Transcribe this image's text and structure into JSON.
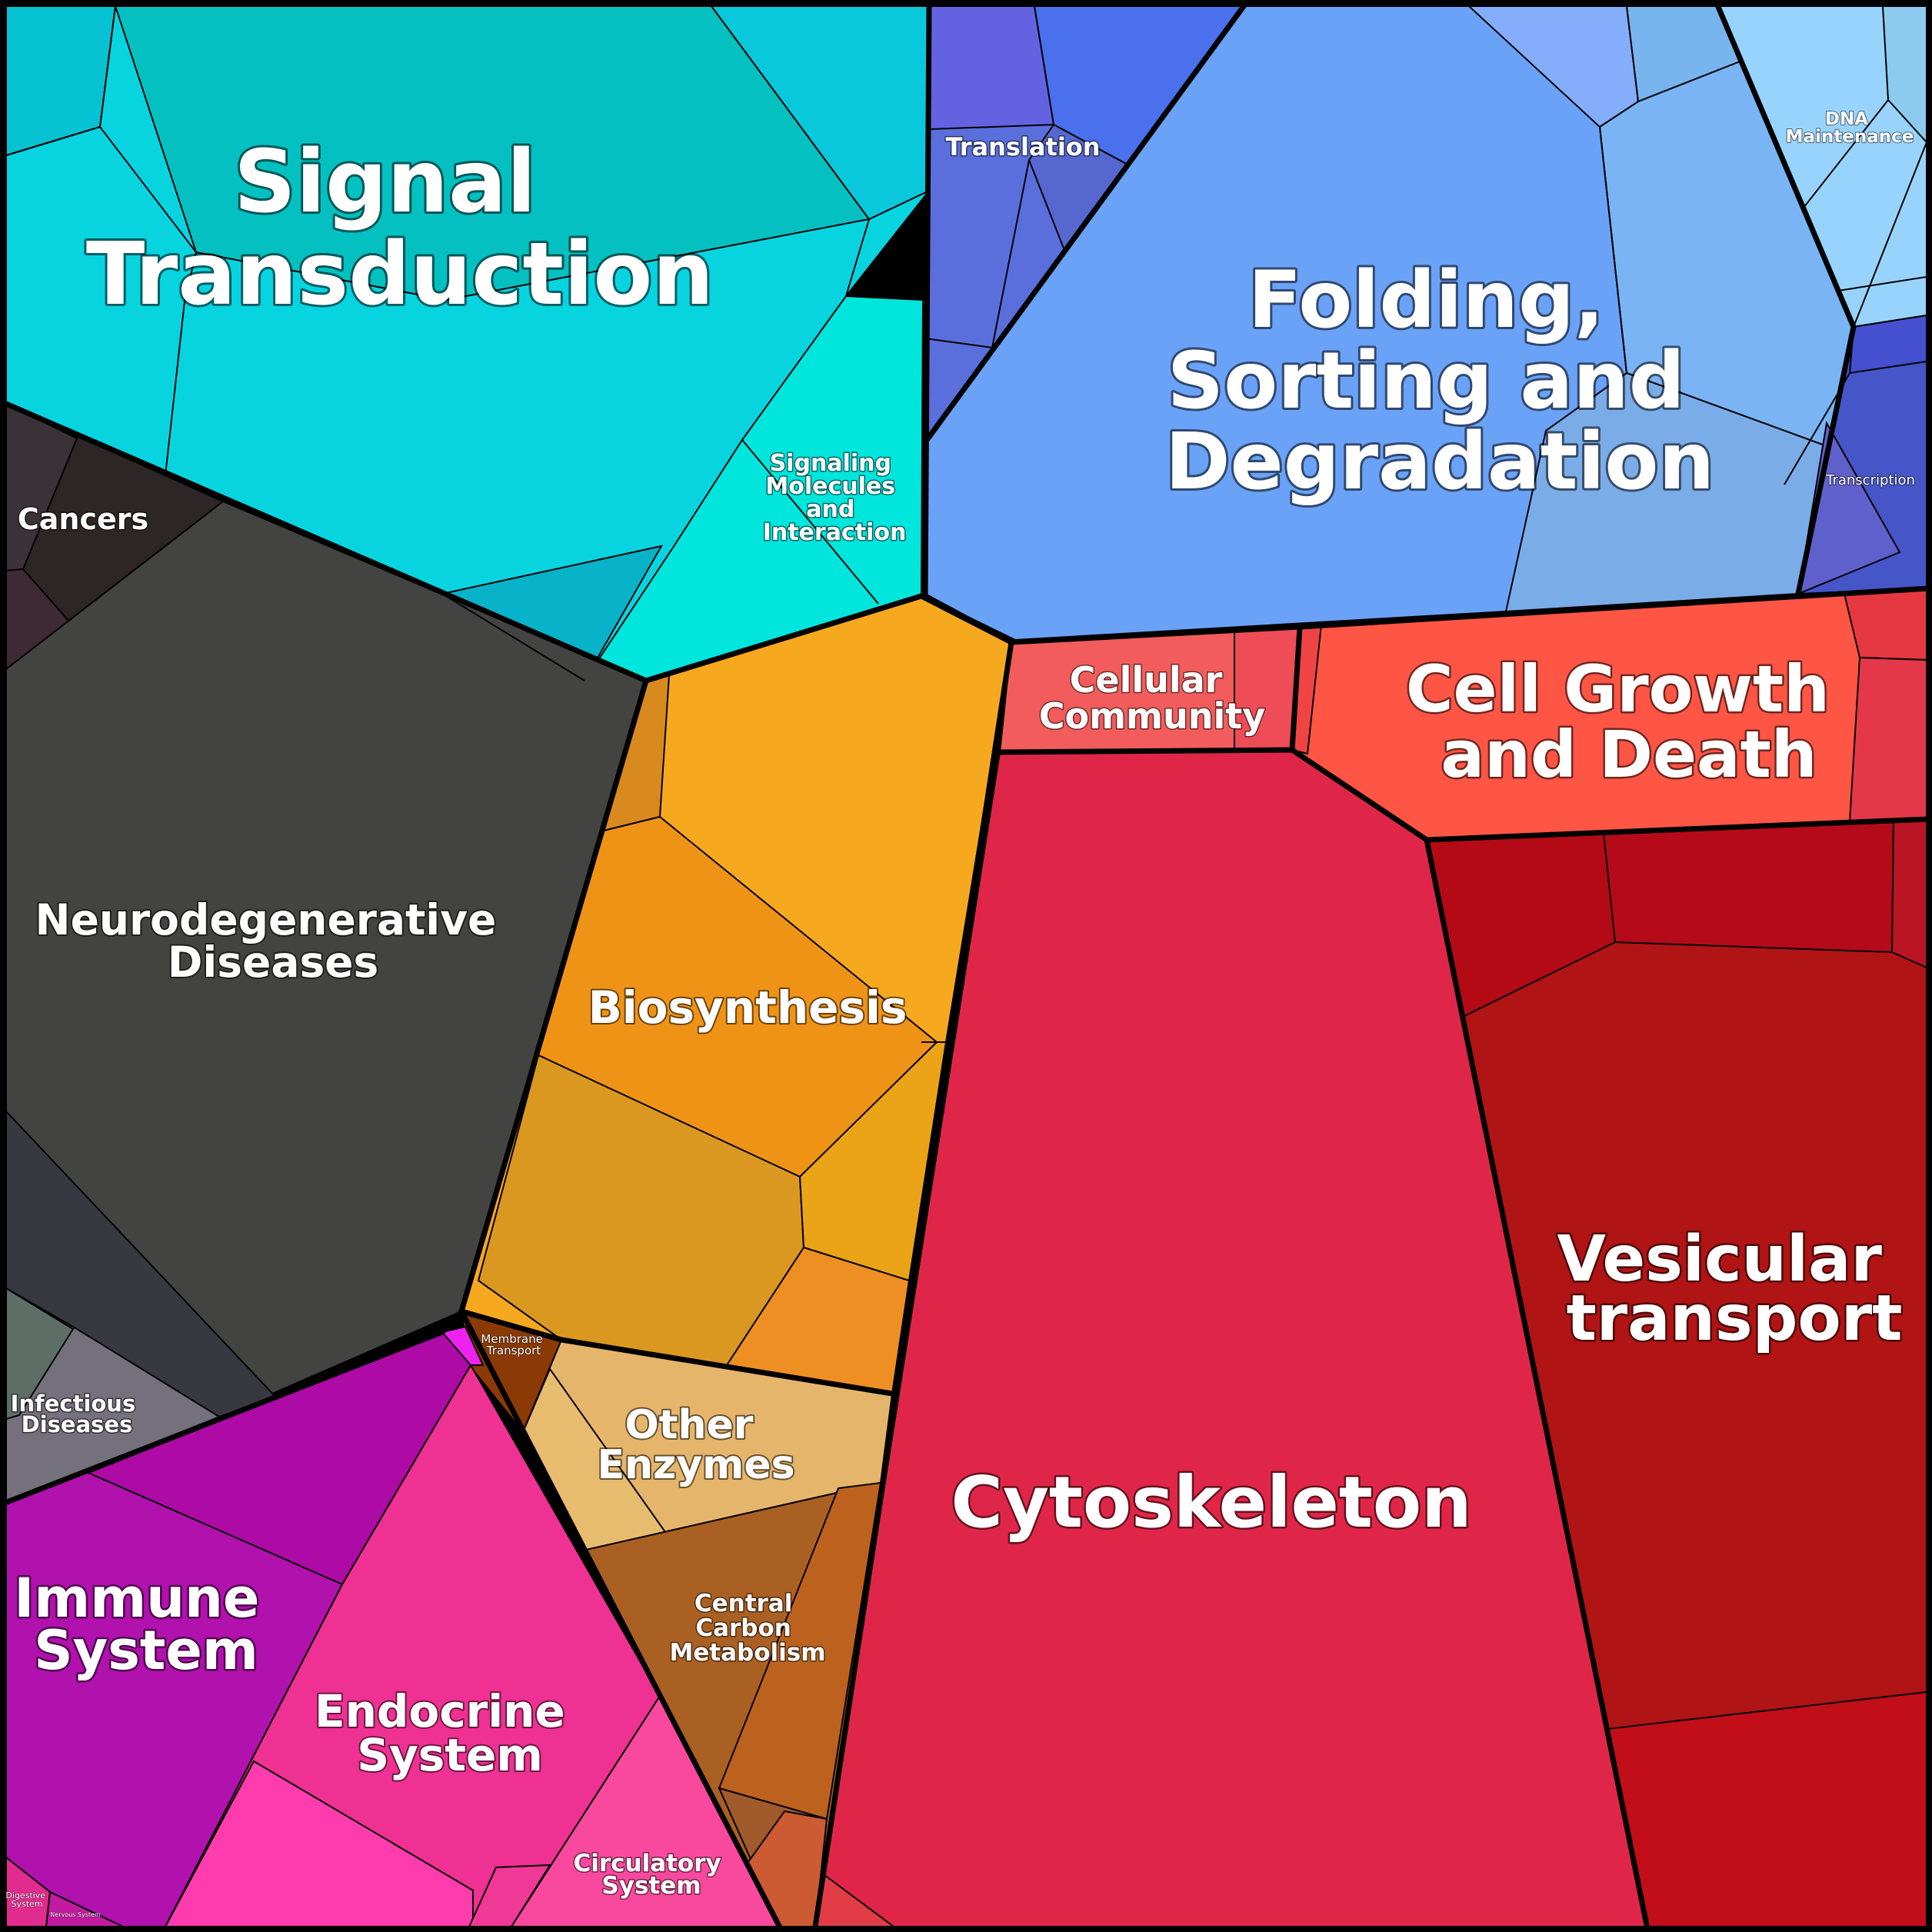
{
  "diagram": {
    "type": "voronoi-treemap",
    "colors": {
      "signal_transduction": "#08d4e0",
      "signaling_molecules": "#00e5dc",
      "translation": "#5a6fdc",
      "folding": "#6aa2f7",
      "dna_maintenance": "#98d3fd",
      "transcription": "#4656c8",
      "cancers": "#2c2626",
      "neurodegenerative": "#434341",
      "infectious": "#74707c",
      "biosynthesis": "#f6a81f",
      "membrane_transport": "#8b3a06",
      "other_enzymes": "#e5b56c",
      "central_carbon": "#aa6022",
      "cellular_community": "#f25c5c",
      "cell_growth": "#ff5545",
      "cytoskeleton": "#e02648",
      "vesicular": "#b01414",
      "immune": "#b111ad",
      "endocrine": "#ee3192",
      "circulatory": "#f8499e",
      "digestive": "#e22b8e"
    },
    "labels": {
      "signal_transduction": [
        "Signal",
        "Transduction"
      ],
      "signaling_molecules": [
        "Signaling",
        "Molecules",
        "and",
        "Interaction"
      ],
      "translation": [
        "Translation"
      ],
      "folding": [
        "Folding,",
        "Sorting and",
        "Degradation"
      ],
      "dna_maintenance": [
        "DNA",
        "Maintenance"
      ],
      "transcription": [
        "Transcription"
      ],
      "cancers": [
        "Cancers"
      ],
      "neurodegenerative": [
        "Neurodegenerative",
        "Diseases"
      ],
      "infectious": [
        "Infectious",
        "Diseases"
      ],
      "biosynthesis": [
        "Biosynthesis"
      ],
      "membrane_transport": [
        "Membrane",
        "Transport"
      ],
      "other_enzymes": [
        "Other",
        "Enzymes"
      ],
      "central_carbon": [
        "Central",
        "Carbon",
        "Metabolism"
      ],
      "cellular_community": [
        "Cellular",
        "Community"
      ],
      "cell_growth": [
        "Cell Growth",
        "and Death"
      ],
      "cytoskeleton": [
        "Cytoskeleton"
      ],
      "vesicular": [
        "Vesicular",
        "transport"
      ],
      "immune": [
        "Immune",
        "System"
      ],
      "endocrine": [
        "Endocrine",
        "System"
      ],
      "circulatory": [
        "Circulatory",
        "System"
      ],
      "digestive": [
        "Digestive",
        "System"
      ],
      "nervous": [
        "Nervous System"
      ]
    }
  }
}
